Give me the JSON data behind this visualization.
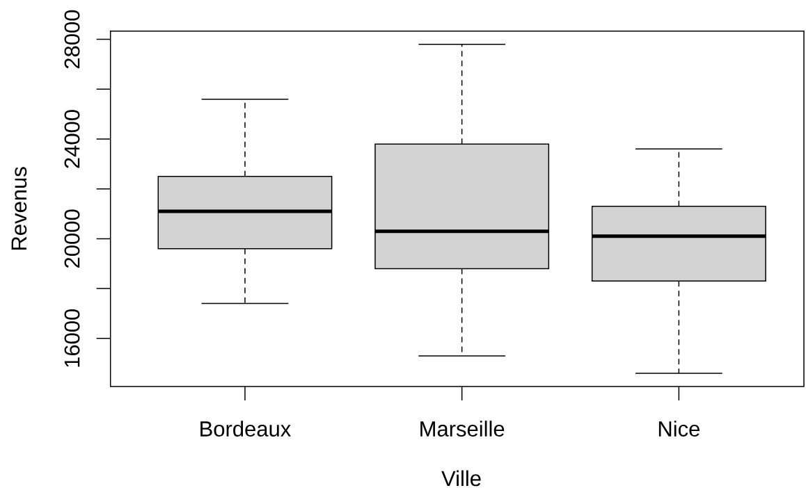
{
  "chart_data": {
    "type": "box",
    "xlabel": "Ville",
    "ylabel": "Revenus",
    "categories": [
      "Bordeaux",
      "Marseille",
      "Nice"
    ],
    "color": "#d3d3d3",
    "line_style": "dashed",
    "boxes": [
      {
        "low": 17400,
        "q1": 19600,
        "median": 21100,
        "q3": 22500,
        "high": 25600
      },
      {
        "low": 15300,
        "q1": 18800,
        "median": 20300,
        "q3": 23800,
        "high": 27800
      },
      {
        "low": 14600,
        "q1": 18300,
        "median": 20100,
        "q3": 21300,
        "high": 23600
      }
    ],
    "ylim": [
      14070,
      28330
    ],
    "yticks": [
      16000,
      20000,
      24000,
      28000
    ]
  }
}
